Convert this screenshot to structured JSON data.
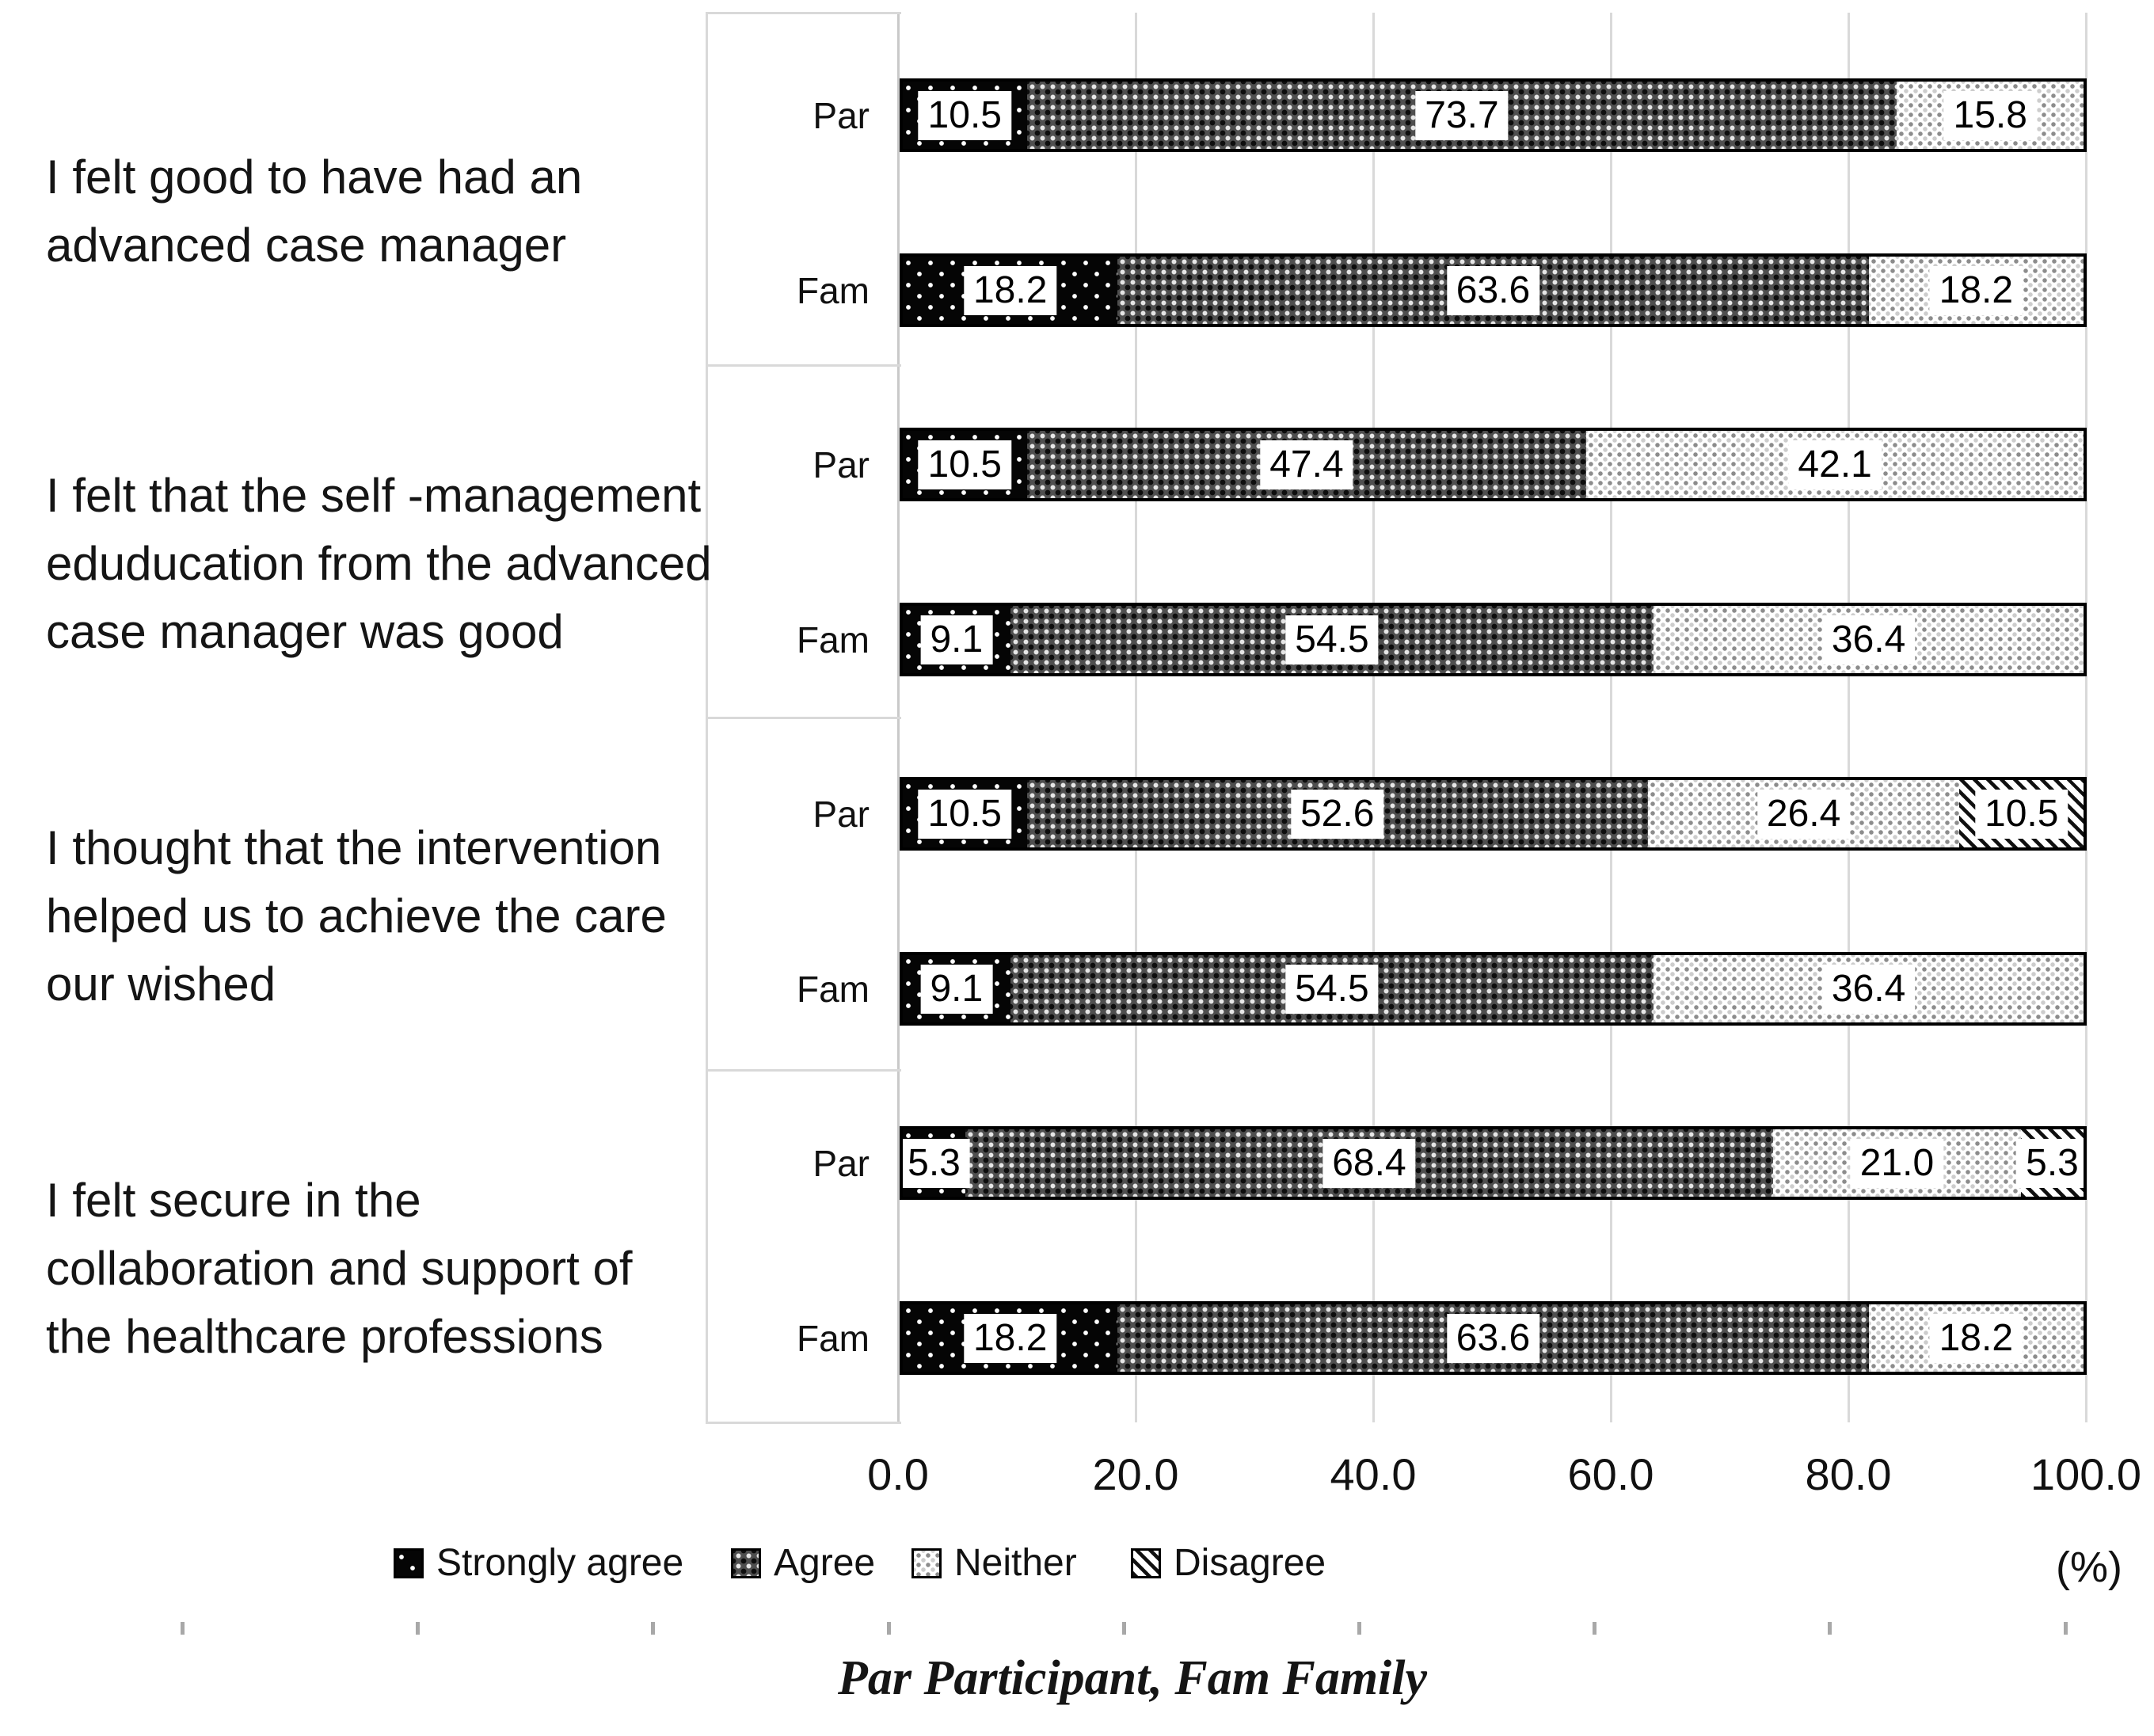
{
  "figure": {
    "unit_label": "(%)"
  },
  "chart_data": {
    "type": "bar",
    "orientation": "horizontal",
    "stacked": true,
    "title": "",
    "xlabel": "(%)",
    "ylabel": "",
    "xlim": [
      0,
      100
    ],
    "grid": true,
    "x_axis": {
      "ticks": [
        "0.0",
        "20.0",
        "40.0",
        "60.0",
        "80.0",
        "100.0"
      ],
      "tick_values": [
        0,
        20,
        40,
        60,
        80,
        100
      ]
    },
    "series_keys": [
      "Strongly agree",
      "Agree",
      "Neither",
      "Disagree"
    ],
    "legend": {
      "position": "bottom",
      "entries": [
        {
          "label": "Strongly agree",
          "pattern": "solid-black"
        },
        {
          "label": "Agree",
          "pattern": "dark-dotted"
        },
        {
          "label": "Neither",
          "pattern": "light-dotted"
        },
        {
          "label": "Disagree",
          "pattern": "diagonal-hatch"
        }
      ]
    },
    "groups": [
      {
        "question_lines": [
          "I felt good to have had an",
          "advanced case manager"
        ],
        "rows": [
          {
            "label": "Par",
            "values": [
              10.5,
              73.7,
              15.8,
              0
            ]
          },
          {
            "label": "Fam",
            "values": [
              18.2,
              63.6,
              18.2,
              0
            ]
          }
        ]
      },
      {
        "question_lines": [
          "I felt that the self -management",
          "eduducation from the advanced",
          "case manager was good"
        ],
        "rows": [
          {
            "label": "Par",
            "values": [
              10.5,
              47.4,
              42.1,
              0
            ]
          },
          {
            "label": "Fam",
            "values": [
              9.1,
              54.5,
              36.4,
              0
            ]
          }
        ]
      },
      {
        "question_lines": [
          "I thought that the intervention",
          "helped us to achieve the care",
          "our wished"
        ],
        "rows": [
          {
            "label": "Par",
            "values": [
              10.5,
              52.6,
              26.4,
              10.5
            ]
          },
          {
            "label": "Fam",
            "values": [
              9.1,
              54.5,
              36.4,
              0
            ]
          }
        ]
      },
      {
        "question_lines": [
          "I felt secure in the",
          "collaboration and support of",
          "the healthcare professions"
        ],
        "rows": [
          {
            "label": "Par",
            "values": [
              5.3,
              68.4,
              21.0,
              5.3
            ]
          },
          {
            "label": "Fam",
            "values": [
              18.2,
              63.6,
              18.2,
              0
            ]
          }
        ]
      }
    ],
    "footnote": "Par Participant, Fam Family",
    "colors": {
      "gridline": "#d9d9d9",
      "axis_line": "#c9c9c9",
      "bar_border": "#000000",
      "text": "#1a1a1a",
      "strongly_agree": "#050505",
      "agree": "#4f4f4f",
      "neither": "#ffffff",
      "disagree_hatch": "#101010"
    }
  }
}
